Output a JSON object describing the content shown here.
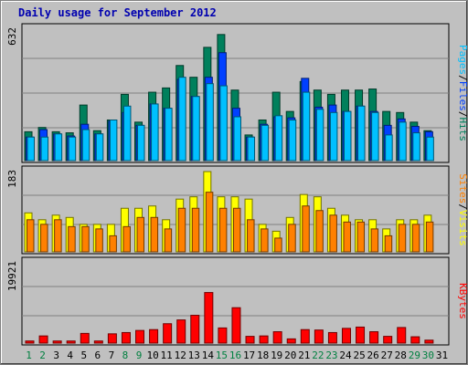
{
  "title": "Daily usage for September 2012",
  "colors": {
    "hits": "#00805c",
    "files": "#0040ff",
    "pages": "#00c0ff",
    "visits": "#ffff00",
    "sites": "#ff8000",
    "kbytes": "#ff0000",
    "weekend_day": "#008040",
    "weekday": "#000000",
    "title": "#0000b0"
  },
  "right_labels": {
    "top": [
      "Pages",
      "/",
      "Files",
      "/",
      "Hits"
    ],
    "middle": [
      "Sites",
      "/",
      "Visits"
    ],
    "bottom": [
      "KBytes"
    ]
  },
  "chart_data": {
    "type": "bar",
    "title": "Daily usage for September 2012",
    "categories": [
      "1",
      "2",
      "3",
      "4",
      "5",
      "6",
      "7",
      "8",
      "9",
      "10",
      "11",
      "12",
      "13",
      "14",
      "15",
      "16",
      "17",
      "18",
      "19",
      "20",
      "21",
      "22",
      "23",
      "24",
      "25",
      "26",
      "27",
      "28",
      "29",
      "30",
      "31"
    ],
    "weekend_days": [
      "1",
      "2",
      "8",
      "9",
      "15",
      "16",
      "22",
      "23",
      "29",
      "30"
    ],
    "panels": [
      {
        "name": "hits-files-pages",
        "max_label": "632",
        "ymax": 632,
        "series": [
          {
            "name": "Hits",
            "values": [
              135,
              155,
              135,
              130,
              260,
              140,
              190,
              310,
              180,
              320,
              340,
              445,
              390,
              530,
              590,
              330,
              120,
              190,
              320,
              230,
              370,
              330,
              310,
              330,
              330,
              335,
              230,
              225,
              180,
              140,
              0
            ]
          },
          {
            "name": "Files",
            "values": [
              110,
              145,
              125,
              115,
              170,
              125,
              185,
              225,
              165,
              265,
              245,
              380,
              300,
              390,
              505,
              245,
              110,
              170,
              205,
              200,
              385,
              250,
              260,
              230,
              255,
              230,
              165,
              195,
              160,
              135,
              0
            ]
          },
          {
            "name": "Pages",
            "values": [
              110,
              110,
              125,
              110,
              145,
              125,
              190,
              255,
              165,
              265,
              245,
              390,
              300,
              360,
              350,
              205,
              110,
              165,
              210,
              190,
              320,
              240,
              225,
              230,
              255,
              225,
              120,
              180,
              130,
              110,
              0
            ]
          }
        ]
      },
      {
        "name": "visits-sites",
        "max_label": "183",
        "ymax": 183,
        "series": [
          {
            "name": "Visits",
            "values": [
              85,
              70,
              80,
              75,
              60,
              60,
              60,
              95,
              95,
              100,
              70,
              115,
              120,
              175,
              120,
              120,
              115,
              60,
              45,
              75,
              125,
              120,
              95,
              80,
              70,
              70,
              50,
              70,
              70,
              80,
              0
            ]
          },
          {
            "name": "Sites",
            "values": [
              70,
              60,
              70,
              55,
              55,
              50,
              35,
              55,
              75,
              75,
              50,
              95,
              95,
              130,
              95,
              95,
              70,
              50,
              30,
              60,
              100,
              90,
              80,
              65,
              65,
              50,
              35,
              60,
              60,
              65,
              0
            ]
          }
        ]
      },
      {
        "name": "kbytes",
        "max_label": "19921",
        "ymax": 19921,
        "series": [
          {
            "name": "KBytes",
            "values": [
              500,
              1700,
              500,
              500,
              2300,
              500,
              2200,
              2500,
              3000,
              3200,
              4600,
              5500,
              6600,
              12000,
              3600,
              8400,
              1600,
              1700,
              2700,
              1000,
              3200,
              3100,
              2500,
              3500,
              3800,
              2700,
              1600,
              3700,
              1500,
              700,
              0
            ]
          }
        ]
      }
    ]
  }
}
